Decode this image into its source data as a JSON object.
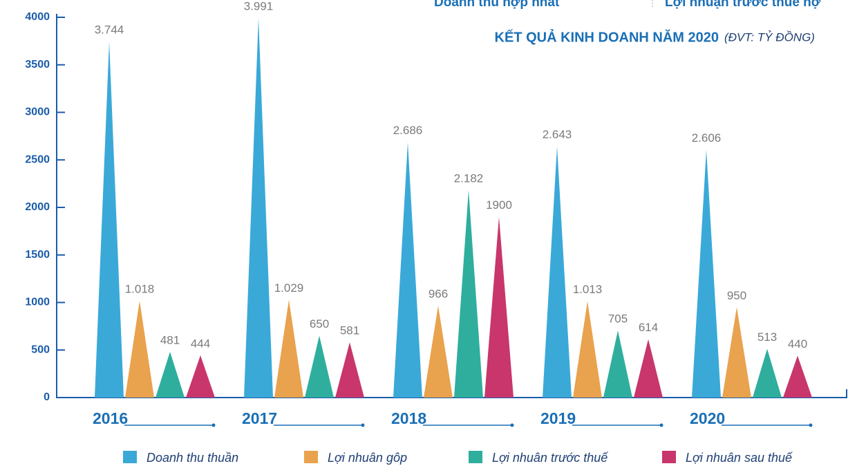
{
  "chart_data": {
    "type": "triangle-bar",
    "annotations": [
      "Doanh thu hợp nhất",
      "Lợi nhuận trước thuế hợ"
    ],
    "title": "KẾT QUẢ KINH DOANH NĂM 2020",
    "subtitle": "(ĐVT: TỶ ĐỒNG)",
    "categories": [
      "2016",
      "2017",
      "2018",
      "2019",
      "2020"
    ],
    "series": [
      {
        "name": "Doanh thu thuần",
        "color": "#3aa9d8",
        "values": [
          3744,
          3991,
          2686,
          2643,
          2606
        ],
        "value_labels": [
          "3.744",
          "3.991",
          "2.686",
          "2.643",
          "2.606"
        ]
      },
      {
        "name": "Lợi nhuân gôp",
        "color": "#e9a24d",
        "values": [
          1018,
          1029,
          966,
          1013,
          950
        ],
        "value_labels": [
          "1.018",
          "1.029",
          "966",
          "1.013",
          "950"
        ]
      },
      {
        "name": "Lợi nhuân trước thuế",
        "color": "#2fae9e",
        "values": [
          481,
          650,
          2182,
          705,
          513
        ],
        "value_labels": [
          "481",
          "650",
          "2.182",
          "705",
          "513"
        ]
      },
      {
        "name": "Lợi nhuân sau thuế",
        "color": "#c8366b",
        "values": [
          444,
          581,
          1900,
          614,
          440
        ],
        "value_labels": [
          "444",
          "581",
          "1900",
          "614",
          "440"
        ]
      }
    ],
    "ylim": [
      0,
      4000
    ],
    "yticks": [
      0,
      500,
      1000,
      1500,
      2000,
      2500,
      3000,
      3500,
      4000
    ]
  }
}
